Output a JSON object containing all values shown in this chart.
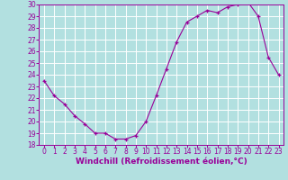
{
  "x": [
    0,
    1,
    2,
    3,
    4,
    5,
    6,
    7,
    8,
    9,
    10,
    11,
    12,
    13,
    14,
    15,
    16,
    17,
    18,
    19,
    20,
    21,
    22,
    23
  ],
  "y": [
    23.5,
    22.2,
    21.5,
    20.5,
    19.8,
    19.0,
    19.0,
    18.5,
    18.5,
    18.8,
    20.0,
    22.2,
    24.5,
    26.8,
    28.5,
    29.0,
    29.5,
    29.3,
    29.8,
    30.0,
    30.2,
    29.0,
    25.5,
    24.0
  ],
  "line_color": "#990099",
  "marker": "+",
  "bg_color": "#b2e0e0",
  "grid_color": "#ffffff",
  "xlabel": "Windchill (Refroidissement éolien,°C)",
  "xlabel_color": "#990099",
  "xtick_color": "#990099",
  "ytick_color": "#990099",
  "ylim": [
    18,
    30
  ],
  "xlim": [
    -0.5,
    23.5
  ],
  "yticks": [
    18,
    19,
    20,
    21,
    22,
    23,
    24,
    25,
    26,
    27,
    28,
    29,
    30
  ],
  "xticks": [
    0,
    1,
    2,
    3,
    4,
    5,
    6,
    7,
    8,
    9,
    10,
    11,
    12,
    13,
    14,
    15,
    16,
    17,
    18,
    19,
    20,
    21,
    22,
    23
  ],
  "tick_fontsize": 5.5,
  "label_fontsize": 6.5
}
